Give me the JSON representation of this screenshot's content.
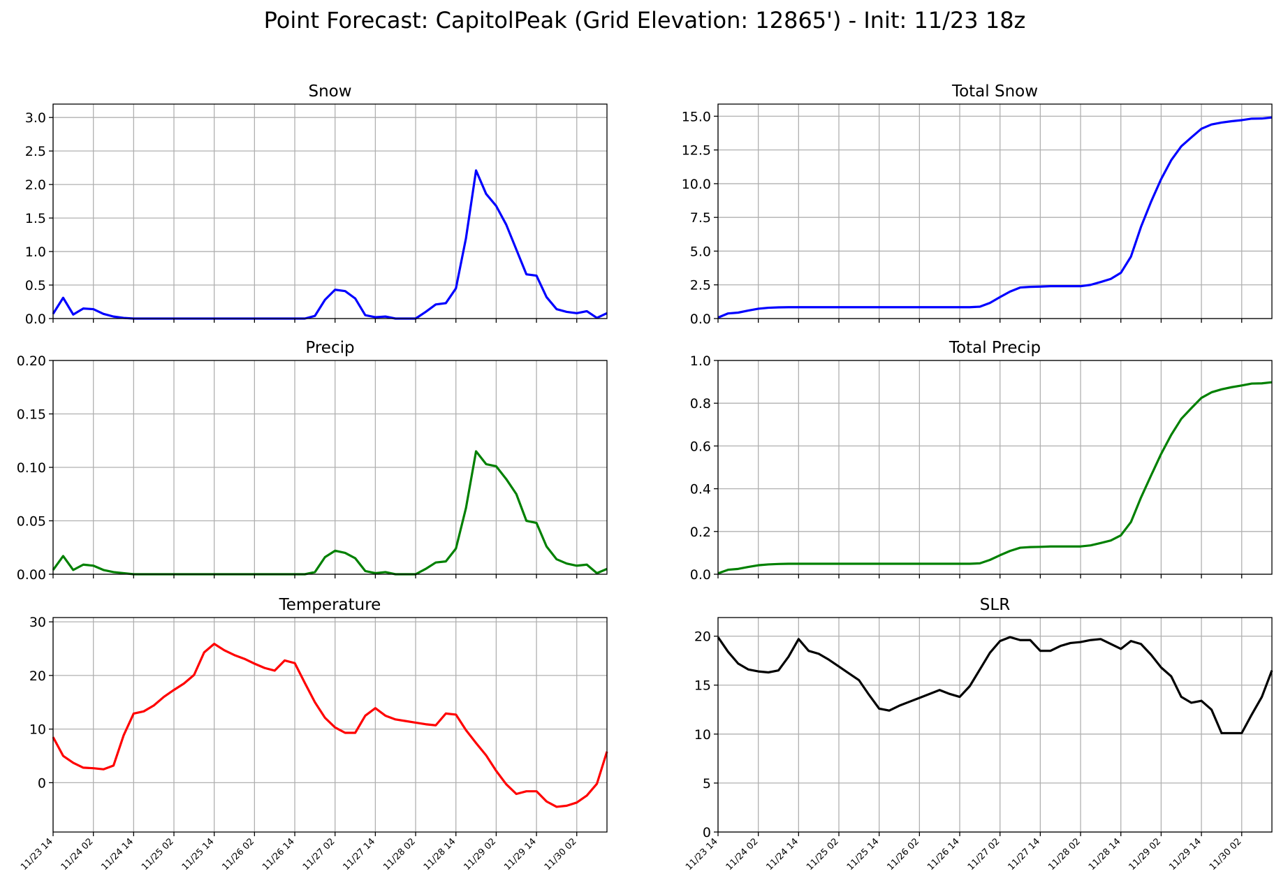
{
  "figure": {
    "title": "Point Forecast: CapitolPeak (Grid Elevation: 12865') - Init: 11/23 18z"
  },
  "chart_data": [
    {
      "id": "snow",
      "type": "line",
      "title": "Snow",
      "color": "#0000ff",
      "ylim": [
        0,
        3.2
      ],
      "yticks": [
        0,
        0.5,
        1,
        1.5,
        2,
        2.5,
        3
      ],
      "yticklabels": [
        "0.0",
        "0.5",
        "1.0",
        "1.5",
        "2.0",
        "2.5",
        "3.0"
      ],
      "grid": true,
      "show_xticklabels": false,
      "values": [
        0.07,
        0.31,
        0.06,
        0.15,
        0.14,
        0.07,
        0.03,
        0.01,
        0,
        0,
        0,
        0,
        0,
        0,
        0,
        0,
        0,
        0,
        0,
        0,
        0,
        0,
        0,
        0,
        0,
        0,
        0.04,
        0.28,
        0.43,
        0.41,
        0.3,
        0.05,
        0.02,
        0.03,
        0,
        0,
        0,
        0.1,
        0.21,
        0.23,
        0.45,
        1.2,
        2.21,
        1.86,
        1.68,
        1.4,
        1.03,
        0.66,
        0.64,
        0.32,
        0.14,
        0.1,
        0.08,
        0.11,
        0.01,
        0.08
      ]
    },
    {
      "id": "total_snow",
      "type": "line",
      "title": "Total Snow",
      "color": "#0000ff",
      "ylim": [
        0,
        15.9
      ],
      "yticks": [
        0,
        2.5,
        5,
        7.5,
        10,
        12.5,
        15
      ],
      "yticklabels": [
        "0.0",
        "2.5",
        "5.0",
        "7.5",
        "10.0",
        "12.5",
        "15.0"
      ],
      "grid": true,
      "show_xticklabels": false,
      "values": [
        0.07,
        0.38,
        0.44,
        0.59,
        0.73,
        0.8,
        0.83,
        0.84,
        0.84,
        0.84,
        0.84,
        0.84,
        0.84,
        0.84,
        0.84,
        0.84,
        0.84,
        0.84,
        0.84,
        0.84,
        0.84,
        0.84,
        0.84,
        0.84,
        0.84,
        0.84,
        0.88,
        1.16,
        1.59,
        2.0,
        2.3,
        2.35,
        2.37,
        2.4,
        2.4,
        2.4,
        2.4,
        2.5,
        2.71,
        2.94,
        3.39,
        4.59,
        6.8,
        8.66,
        10.34,
        11.74,
        12.77,
        13.43,
        14.07,
        14.39,
        14.53,
        14.63,
        14.71,
        14.82,
        14.83,
        14.91
      ]
    },
    {
      "id": "precip",
      "type": "line",
      "title": "Precip",
      "color": "#008000",
      "ylim": [
        0,
        0.2
      ],
      "yticks": [
        0,
        0.05,
        0.1,
        0.15,
        0.2
      ],
      "yticklabels": [
        "0.00",
        "0.05",
        "0.10",
        "0.15",
        "0.20"
      ],
      "grid": true,
      "show_xticklabels": false,
      "values": [
        0.004,
        0.017,
        0.004,
        0.009,
        0.008,
        0.004,
        0.002,
        0.001,
        0,
        0,
        0,
        0,
        0,
        0,
        0,
        0,
        0,
        0,
        0,
        0,
        0,
        0,
        0,
        0,
        0,
        0,
        0.002,
        0.016,
        0.022,
        0.02,
        0.015,
        0.003,
        0.001,
        0.002,
        0,
        0,
        0,
        0.005,
        0.011,
        0.012,
        0.024,
        0.062,
        0.115,
        0.103,
        0.101,
        0.089,
        0.075,
        0.05,
        0.048,
        0.026,
        0.014,
        0.01,
        0.008,
        0.009,
        0.001,
        0.005
      ]
    },
    {
      "id": "total_precip",
      "type": "line",
      "title": "Total Precip",
      "color": "#008000",
      "ylim": [
        0,
        1.0
      ],
      "yticks": [
        0,
        0.2,
        0.4,
        0.6,
        0.8,
        1.0
      ],
      "yticklabels": [
        "0.0",
        "0.2",
        "0.4",
        "0.6",
        "0.8",
        "1.0"
      ],
      "grid": true,
      "show_xticklabels": false,
      "values": [
        0.004,
        0.021,
        0.025,
        0.034,
        0.042,
        0.046,
        0.048,
        0.049,
        0.049,
        0.049,
        0.049,
        0.049,
        0.049,
        0.049,
        0.049,
        0.049,
        0.049,
        0.049,
        0.049,
        0.049,
        0.049,
        0.049,
        0.049,
        0.049,
        0.049,
        0.049,
        0.051,
        0.067,
        0.089,
        0.109,
        0.124,
        0.127,
        0.128,
        0.13,
        0.13,
        0.13,
        0.13,
        0.135,
        0.146,
        0.158,
        0.182,
        0.244,
        0.359,
        0.462,
        0.563,
        0.652,
        0.727,
        0.777,
        0.825,
        0.851,
        0.865,
        0.875,
        0.883,
        0.892,
        0.893,
        0.898
      ]
    },
    {
      "id": "temperature",
      "type": "line",
      "title": "Temperature",
      "color": "#ff0000",
      "ylim": [
        -9.2,
        30.8
      ],
      "yticks": [
        0,
        10,
        20,
        30
      ],
      "yticklabels": [
        "0",
        "10",
        "20",
        "30"
      ],
      "grid": true,
      "show_xticklabels": true,
      "values": [
        8.5,
        5,
        3.7,
        2.8,
        2.7,
        2.5,
        3.2,
        8.8,
        12.9,
        13.3,
        14.4,
        16,
        17.3,
        18.5,
        20.1,
        24.3,
        25.9,
        24.7,
        23.8,
        23.1,
        22.2,
        21.4,
        20.9,
        22.8,
        22.3,
        18.6,
        15,
        12.1,
        10.3,
        9.3,
        9.3,
        12.5,
        13.9,
        12.5,
        11.8,
        11.5,
        11.2,
        10.9,
        10.7,
        12.9,
        12.7,
        9.8,
        7.4,
        5.1,
        2.2,
        -0.3,
        -2.1,
        -1.6,
        -1.6,
        -3.5,
        -4.5,
        -4.3,
        -3.7,
        -2.4,
        -0.2,
        5.8
      ]
    },
    {
      "id": "slr",
      "type": "line",
      "title": "SLR",
      "color": "#000000",
      "ylim": [
        0,
        21.9
      ],
      "yticks": [
        0,
        5,
        10,
        15,
        20
      ],
      "yticklabels": [
        "0",
        "5",
        "10",
        "15",
        "20"
      ],
      "grid": true,
      "show_xticklabels": true,
      "values": [
        19.9,
        18.4,
        17.2,
        16.6,
        16.4,
        16.3,
        16.5,
        17.9,
        19.7,
        18.5,
        18.2,
        17.6,
        16.9,
        16.2,
        15.5,
        14,
        12.6,
        12.4,
        12.9,
        13.3,
        13.7,
        14.1,
        14.5,
        14.1,
        13.8,
        14.9,
        16.6,
        18.3,
        19.5,
        19.9,
        19.6,
        19.6,
        18.5,
        18.5,
        19,
        19.3,
        19.4,
        19.6,
        19.7,
        19.2,
        18.7,
        19.5,
        19.2,
        18.1,
        16.8,
        15.9,
        13.8,
        13.2,
        13.4,
        12.5,
        10.1,
        10.1,
        10.1,
        12,
        13.8,
        16.5
      ]
    }
  ],
  "x_axis": {
    "ticklabels": [
      "11/23 14",
      "11/24 02",
      "11/24 14",
      "11/25 02",
      "11/25 14",
      "11/26 02",
      "11/26 14",
      "11/27 02",
      "11/27 14",
      "11/28 02",
      "11/28 14",
      "11/29 02",
      "11/29 14",
      "11/30 02"
    ],
    "tick_step_points": 4
  }
}
